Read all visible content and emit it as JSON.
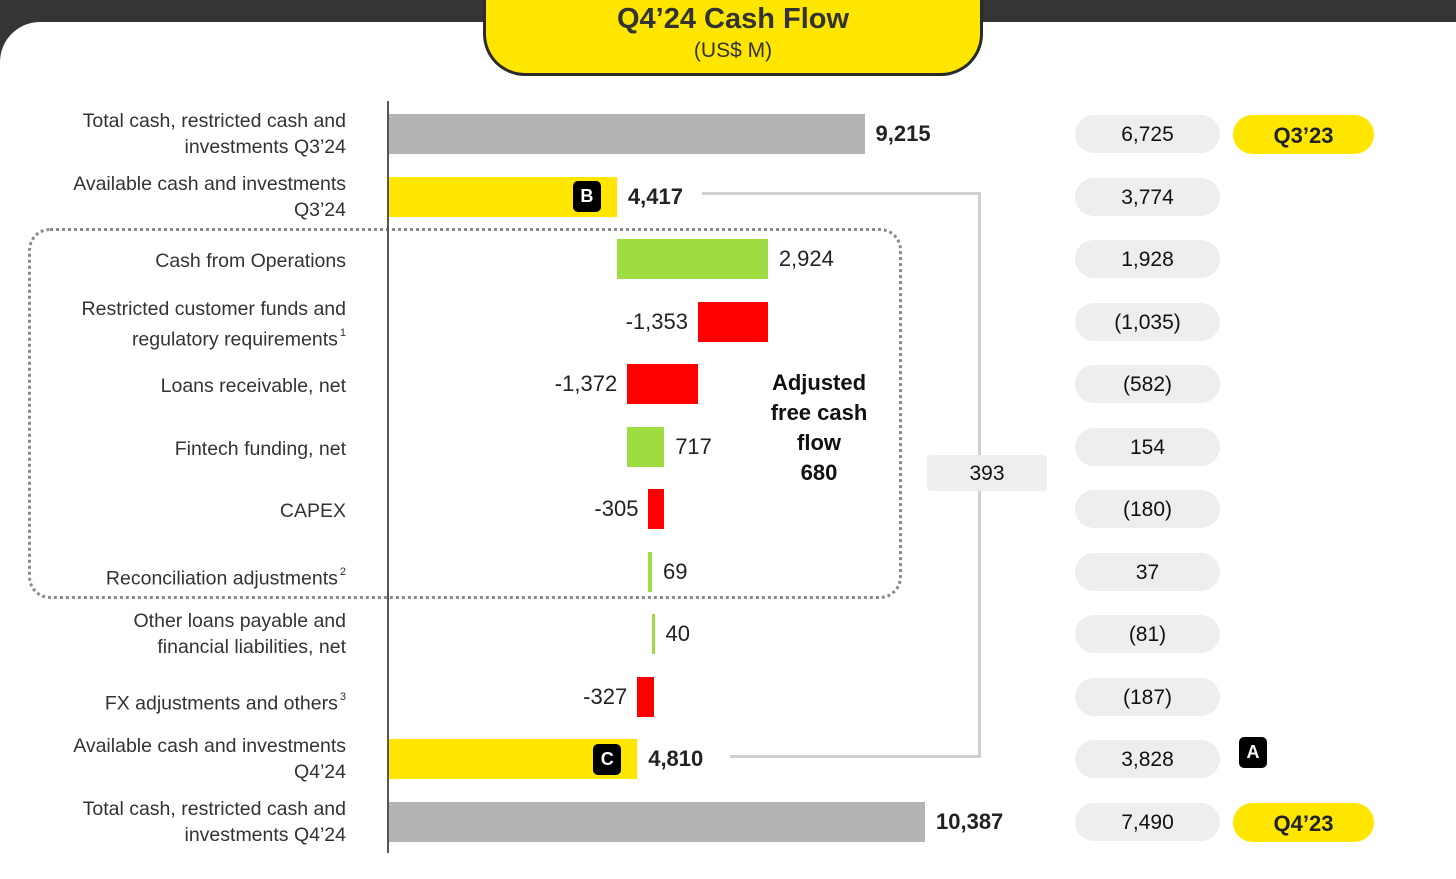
{
  "title": "Q4’24 Cash Flow",
  "subtitle": "(US$ M)",
  "chart_data": {
    "type": "bar",
    "subtype": "waterfall",
    "title": "Q4’24 Cash Flow",
    "units": "(US$ M)",
    "rows": [
      {
        "label_lines": [
          "Total cash, restricted cash and",
          "investments Q3’24"
        ],
        "footnote": "",
        "value": 9215,
        "display": "9,215",
        "kind": "total",
        "color": "#b4b4b4"
      },
      {
        "label_lines": [
          "Available cash and investments",
          "Q3’24"
        ],
        "footnote": "",
        "value": 4417,
        "display": "4,417",
        "kind": "available",
        "color": "#ffe600",
        "badge": "B"
      },
      {
        "label_lines": [
          "Cash from Operations"
        ],
        "footnote": "",
        "value": 2924,
        "display": "2,924",
        "kind": "change",
        "color": "#9ddd41"
      },
      {
        "label_lines": [
          "Restricted customer funds and",
          "regulatory requirements"
        ],
        "footnote": "1",
        "value": -1353,
        "display": "-1,353",
        "kind": "change",
        "color": "#ff0000"
      },
      {
        "label_lines": [
          "Loans receivable, net"
        ],
        "footnote": "",
        "value": -1372,
        "display": "-1,372",
        "kind": "change",
        "color": "#ff0000"
      },
      {
        "label_lines": [
          "Fintech funding, net"
        ],
        "footnote": "",
        "value": 717,
        "display": "717",
        "kind": "change",
        "color": "#9ddd41"
      },
      {
        "label_lines": [
          "CAPEX"
        ],
        "footnote": "",
        "value": -305,
        "display": "-305",
        "kind": "change",
        "color": "#ff0000"
      },
      {
        "label_lines": [
          "Reconciliation adjustments"
        ],
        "footnote": "2",
        "value": 69,
        "display": "69",
        "kind": "change",
        "color": "#9ddd41"
      },
      {
        "label_lines": [
          "Other loans payable and",
          "financial liabilities, net"
        ],
        "footnote": "",
        "value": 40,
        "display": "40",
        "kind": "change",
        "color": "#9ddd41"
      },
      {
        "label_lines": [
          "FX adjustments and others"
        ],
        "footnote": "3",
        "value": -327,
        "display": "-327",
        "kind": "change",
        "color": "#ff0000"
      },
      {
        "label_lines": [
          "Available cash and investments",
          "Q4’24"
        ],
        "footnote": "",
        "value": 4810,
        "display": "4,810",
        "kind": "available",
        "color": "#ffe600",
        "badge": "C"
      },
      {
        "label_lines": [
          "Total cash, restricted cash and",
          "investments Q4’24"
        ],
        "footnote": "",
        "value": 10387,
        "display": "10,387",
        "kind": "total",
        "color": "#b4b4b4"
      }
    ],
    "adjusted_fcf": {
      "label_lines": [
        "Adjusted",
        "free cash",
        "flow"
      ],
      "value": "680"
    },
    "available_change": "393",
    "comparison": {
      "values": [
        "6,725",
        "3,774",
        "1,928",
        "(1,035)",
        "(582)",
        "154",
        "(180)",
        "37",
        "(81)",
        "(187)",
        "3,828",
        "7,490"
      ],
      "top_label": "Q3’23",
      "bottom_label": "Q4’23",
      "marker": "A"
    }
  }
}
